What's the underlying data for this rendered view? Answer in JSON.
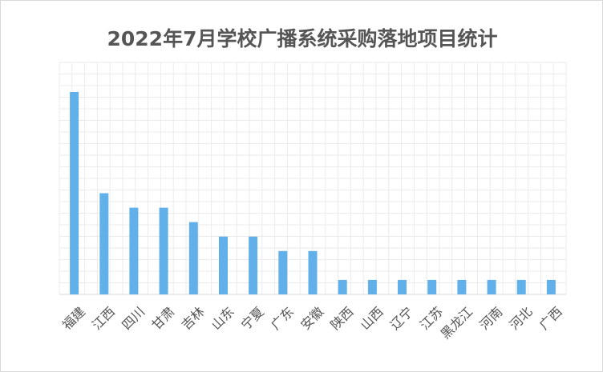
{
  "chart_data": {
    "type": "bar",
    "title": "2022年7月学校广播系统采购落地项目统计",
    "xlabel": "",
    "ylabel": "",
    "categories": [
      "福建",
      "江西",
      "四川",
      "甘肃",
      "吉林",
      "山东",
      "宁夏",
      "广东",
      "安徽",
      "陕西",
      "山西",
      "辽宁",
      "江苏",
      "黑龙江",
      "河南",
      "河北",
      "广西"
    ],
    "values": [
      14,
      7,
      6,
      6,
      5,
      4,
      4,
      3,
      3,
      1,
      1,
      1,
      1,
      1,
      1,
      1,
      1
    ],
    "ylim": [
      0,
      14
    ],
    "grid": true,
    "legend": "none",
    "bar_color": "#62b0ea",
    "grid_color": "#ebebeb"
  }
}
